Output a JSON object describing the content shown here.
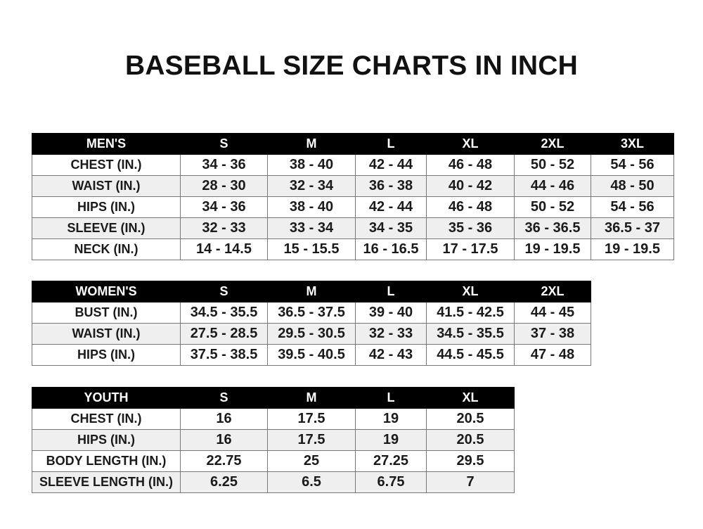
{
  "title": "BASEBALL SIZE CHARTS IN INCH",
  "tables": [
    {
      "headers": [
        "MEN'S",
        "S",
        "M",
        "L",
        "XL",
        "2XL",
        "3XL"
      ],
      "rows": [
        [
          "CHEST (IN.)",
          "34 - 36",
          "38 - 40",
          "42 - 44",
          "46 - 48",
          "50 - 52",
          "54 - 56"
        ],
        [
          "WAIST (IN.)",
          "28 - 30",
          "32 - 34",
          "36 - 38",
          "40 - 42",
          "44 - 46",
          "48 - 50"
        ],
        [
          "HIPS (IN.)",
          "34 - 36",
          "38 - 40",
          "42 - 44",
          "46 - 48",
          "50 - 52",
          "54 - 56"
        ],
        [
          "SLEEVE (IN.)",
          "32 - 33",
          "33 - 34",
          "34 - 35",
          "35 - 36",
          "36 - 36.5",
          "36.5 - 37"
        ],
        [
          "NECK (IN.)",
          "14 - 14.5",
          "15 - 15.5",
          "16 - 16.5",
          "17 - 17.5",
          "19 - 19.5",
          "19 - 19.5"
        ]
      ]
    },
    {
      "headers": [
        "WOMEN'S",
        "S",
        "M",
        "L",
        "XL",
        "2XL"
      ],
      "rows": [
        [
          "BUST (IN.)",
          "34.5 - 35.5",
          "36.5 - 37.5",
          "39 - 40",
          "41.5 - 42.5",
          "44 - 45"
        ],
        [
          "WAIST (IN.)",
          "27.5 - 28.5",
          "29.5 - 30.5",
          "32 - 33",
          "34.5 - 35.5",
          "37 - 38"
        ],
        [
          "HIPS (IN.)",
          "37.5 - 38.5",
          "39.5 - 40.5",
          "42 - 43",
          "44.5 - 45.5",
          "47 - 48"
        ]
      ]
    },
    {
      "headers": [
        "YOUTH",
        "S",
        "M",
        "L",
        "XL"
      ],
      "rows": [
        [
          "CHEST (IN.)",
          "16",
          "17.5",
          "19",
          "20.5"
        ],
        [
          "HIPS (IN.)",
          "16",
          "17.5",
          "19",
          "20.5"
        ],
        [
          "BODY LENGTH (IN.)",
          "22.75",
          "25",
          "27.25",
          "29.5"
        ],
        [
          "SLEEVE LENGTH (IN.)",
          "6.25",
          "6.5",
          "6.75",
          "7"
        ]
      ]
    }
  ]
}
